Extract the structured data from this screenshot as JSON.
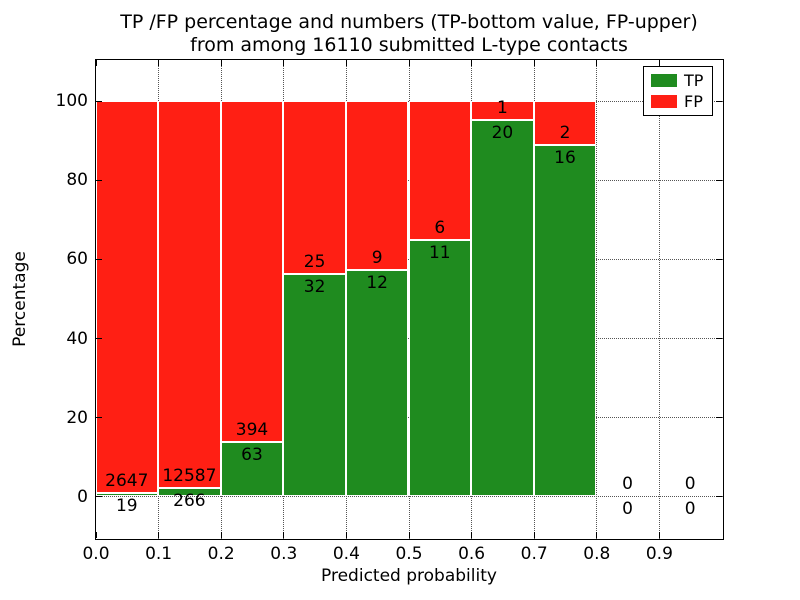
{
  "chart_data": {
    "type": "bar",
    "variant": "stacked-percentage-histogram",
    "title_line1": "TP /FP percentage and numbers (TP-bottom value, FP-upper)",
    "title_line2": "from among 16110 submitted L-type contacts",
    "total_contacts": 16110,
    "xlabel": "Predicted probability",
    "ylabel": "Percentage",
    "xlim": [
      0.0,
      1.0
    ],
    "ylim": [
      -10.5,
      110.5
    ],
    "xticks": [
      "0.0",
      "0.1",
      "0.2",
      "0.3",
      "0.4",
      "0.5",
      "0.6",
      "0.7",
      "0.8",
      "0.9"
    ],
    "xtick_values": [
      0.0,
      0.1,
      0.2,
      0.3,
      0.4,
      0.5,
      0.6,
      0.7,
      0.8,
      0.9
    ],
    "yticks": [
      "0",
      "20",
      "40",
      "60",
      "80",
      "100"
    ],
    "ytick_values": [
      0,
      20,
      40,
      60,
      80,
      100
    ],
    "grid": "dotted",
    "bar_edge_color": "#ffffff",
    "colors": {
      "tp": "#1f8b1f",
      "fp": "#ff1f14"
    },
    "legend": {
      "position": "upper-right",
      "entries": [
        {
          "label": "TP",
          "color": "#1f8b1f"
        },
        {
          "label": "FP",
          "color": "#ff1f14"
        }
      ]
    },
    "bins": [
      {
        "range": [
          0.0,
          0.1
        ],
        "tp": 19,
        "fp": 2647
      },
      {
        "range": [
          0.1,
          0.2
        ],
        "tp": 266,
        "fp": 12587
      },
      {
        "range": [
          0.2,
          0.3
        ],
        "tp": 63,
        "fp": 394
      },
      {
        "range": [
          0.3,
          0.4
        ],
        "tp": 32,
        "fp": 25
      },
      {
        "range": [
          0.4,
          0.5
        ],
        "tp": 12,
        "fp": 9
      },
      {
        "range": [
          0.5,
          0.6
        ],
        "tp": 11,
        "fp": 6
      },
      {
        "range": [
          0.6,
          0.7
        ],
        "tp": 20,
        "fp": 1
      },
      {
        "range": [
          0.7,
          0.8
        ],
        "tp": 16,
        "fp": 2
      },
      {
        "range": [
          0.8,
          0.9
        ],
        "tp": 0,
        "fp": 0
      },
      {
        "range": [
          0.9,
          1.0
        ],
        "tp": 0,
        "fp": 0
      }
    ]
  }
}
